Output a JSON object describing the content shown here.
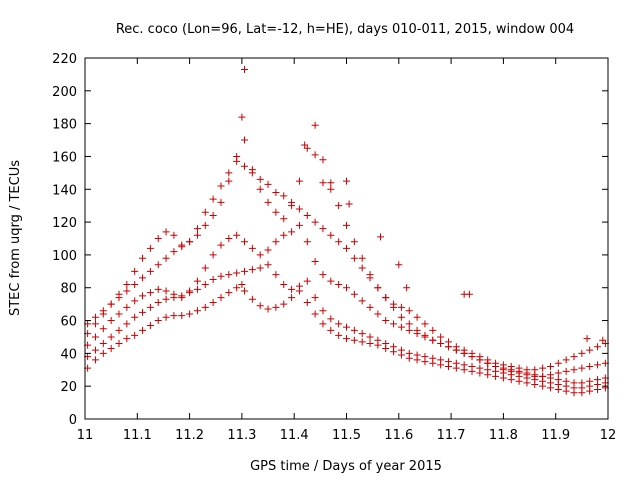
{
  "chart_data": {
    "type": "scatter",
    "title": "Rec. coco (Lon=96, Lat=-12, h=HE), days 010-011, 2015, window 004",
    "xlabel": "GPS time / Days of year 2015",
    "ylabel": "STEC from uqrg / TECUs",
    "xlim": [
      11,
      12
    ],
    "ylim": [
      0,
      220
    ],
    "xticks": [
      "11",
      "11.1",
      "11.2",
      "11.3",
      "11.4",
      "11.5",
      "11.6",
      "11.7",
      "11.8",
      "11.9",
      "12"
    ],
    "yticks": [
      "0",
      "20",
      "40",
      "60",
      "80",
      "100",
      "120",
      "140",
      "160",
      "180",
      "200",
      "220"
    ],
    "grid": false,
    "legend": "none",
    "marker": "plus",
    "color": "#cc0000",
    "series": [
      {
        "x": [
          11.005,
          11.02,
          11.035,
          11.05,
          11.065,
          11.08,
          11.095,
          11.11,
          11.125,
          11.14,
          11.155,
          11.17,
          11.185,
          11.2,
          11.215,
          11.23,
          11.245,
          11.26,
          11.275,
          11.29,
          11.3,
          11.305,
          11.32,
          11.335,
          11.35,
          11.365,
          11.38,
          11.395,
          11.41,
          11.425,
          11.44,
          11.455,
          11.47,
          11.485,
          11.5,
          11.515,
          11.53,
          11.545,
          11.56,
          11.575,
          11.59,
          11.605,
          11.62,
          11.635,
          11.65,
          11.665,
          11.68,
          11.695,
          11.71,
          11.725,
          11.74,
          11.755,
          11.77,
          11.785,
          11.8,
          11.815,
          11.83,
          11.845,
          11.86,
          11.875,
          11.89,
          11.905,
          11.92,
          11.935,
          11.95,
          11.965,
          11.98,
          11.995
        ],
        "y": [
          31,
          36,
          40,
          43,
          46,
          49,
          51,
          54,
          57,
          60,
          62,
          63,
          63,
          64,
          66,
          68,
          71,
          74,
          77,
          80,
          82,
          78,
          73,
          69,
          67,
          68,
          70,
          74,
          78,
          71,
          64,
          58,
          54,
          51,
          49,
          48,
          47,
          46,
          45,
          43,
          41,
          39,
          37,
          36,
          35,
          34,
          33,
          32,
          31,
          30,
          29,
          28,
          27,
          26,
          25,
          24,
          23,
          22,
          21,
          20,
          19,
          18,
          17,
          16,
          16,
          17,
          18,
          19
        ]
      },
      {
        "x": [
          11.005,
          11.02,
          11.035,
          11.05,
          11.065,
          11.08,
          11.095,
          11.11,
          11.125,
          11.14,
          11.155,
          11.17,
          11.185,
          11.2,
          11.215,
          11.23,
          11.245,
          11.26,
          11.275,
          11.29,
          11.305,
          11.32,
          11.335,
          11.35,
          11.365,
          11.38,
          11.395,
          11.41,
          11.425,
          11.44,
          11.455,
          11.47,
          11.485,
          11.5,
          11.515,
          11.53,
          11.545,
          11.56,
          11.575,
          11.59,
          11.605,
          11.62,
          11.635,
          11.65,
          11.665,
          11.68,
          11.695,
          11.71,
          11.725,
          11.74,
          11.755,
          11.77,
          11.785,
          11.8,
          11.815,
          11.83,
          11.845,
          11.86,
          11.875,
          11.89,
          11.905,
          11.92,
          11.935,
          11.95,
          11.965,
          11.98,
          11.995
        ],
        "y": [
          38,
          42,
          46,
          50,
          54,
          58,
          62,
          65,
          68,
          71,
          73,
          74,
          75,
          77,
          79,
          82,
          85,
          87,
          88,
          89,
          90,
          91,
          92,
          94,
          88,
          82,
          79,
          81,
          84,
          74,
          66,
          61,
          58,
          56,
          54,
          52,
          50,
          48,
          46,
          44,
          42,
          40,
          39,
          38,
          37,
          36,
          35,
          34,
          33,
          32,
          31,
          30,
          29,
          28,
          27,
          26,
          25,
          24,
          23,
          22,
          21,
          20,
          19,
          19,
          20,
          21,
          22
        ]
      },
      {
        "x": [
          11.005,
          11.02,
          11.035,
          11.05,
          11.065,
          11.08,
          11.095,
          11.11,
          11.125,
          11.14,
          11.155,
          11.17,
          11.185,
          11.2,
          11.215,
          11.23,
          11.245,
          11.26,
          11.275,
          11.29,
          11.305,
          11.32,
          11.335,
          11.35,
          11.365,
          11.38,
          11.395,
          11.41,
          11.425,
          11.44,
          11.455,
          11.47,
          11.485,
          11.5,
          11.515,
          11.53,
          11.545,
          11.56,
          11.575,
          11.59,
          11.605,
          11.62,
          11.635,
          11.65,
          11.665,
          11.68,
          11.695,
          11.71,
          11.725,
          11.74,
          11.755,
          11.77,
          11.785,
          11.8,
          11.815,
          11.83,
          11.845,
          11.86,
          11.875,
          11.89,
          11.905,
          11.92,
          11.935,
          11.95,
          11.965,
          11.98,
          11.995
        ],
        "y": [
          45,
          50,
          55,
          60,
          64,
          68,
          72,
          75,
          77,
          79,
          78,
          76,
          74,
          78,
          84,
          92,
          100,
          106,
          110,
          112,
          108,
          104,
          100,
          103,
          108,
          112,
          114,
          118,
          108,
          96,
          88,
          84,
          82,
          80,
          76,
          72,
          68,
          64,
          60,
          58,
          56,
          54,
          52,
          50,
          48,
          46,
          44,
          42,
          40,
          38,
          36,
          34,
          32,
          31,
          30,
          29,
          28,
          27,
          26,
          25,
          24,
          23,
          22,
          22,
          23,
          24,
          25
        ]
      },
      {
        "x": [
          11.005,
          11.02,
          11.035,
          11.05,
          11.065,
          11.08,
          11.095,
          11.11,
          11.125,
          11.14,
          11.155,
          11.17,
          11.185,
          11.2,
          11.215,
          11.23,
          11.245,
          11.26,
          11.275,
          11.29,
          11.305,
          11.32,
          11.335,
          11.35,
          11.365,
          11.38,
          11.395,
          11.41,
          11.425,
          11.44,
          11.455,
          11.47,
          11.485,
          11.5,
          11.515,
          11.53,
          11.545,
          11.56,
          11.575,
          11.59,
          11.605,
          11.62,
          11.635,
          11.65,
          11.665,
          11.68,
          11.695,
          11.71,
          11.725,
          11.74,
          11.755,
          11.77,
          11.785,
          11.8,
          11.815,
          11.83,
          11.845,
          11.86,
          11.875,
          11.89,
          11.905,
          11.92,
          11.935,
          11.95,
          11.965,
          11.98,
          11.995
        ],
        "y": [
          52,
          58,
          64,
          70,
          76,
          82,
          90,
          98,
          104,
          110,
          114,
          112,
          106,
          108,
          116,
          126,
          134,
          142,
          150,
          157,
          154,
          150,
          146,
          143,
          138,
          136,
          132,
          128,
          124,
          120,
          116,
          112,
          108,
          104,
          98,
          92,
          86,
          80,
          74,
          68,
          62,
          58,
          54,
          51,
          48,
          46,
          44,
          42,
          40,
          38,
          36,
          34,
          32,
          30,
          29,
          28,
          27,
          26,
          26,
          27,
          28,
          29,
          30,
          31,
          32,
          33,
          34
        ]
      },
      {
        "x": [
          11.005,
          11.02,
          11.035,
          11.05,
          11.065,
          11.08,
          11.095,
          11.11,
          11.125,
          11.14,
          11.155,
          11.17,
          11.185,
          11.2,
          11.215,
          11.23,
          11.245,
          11.26,
          11.275,
          11.29,
          11.3,
          11.305,
          11.32,
          11.335,
          11.35,
          11.365,
          11.38,
          11.395,
          11.41,
          11.425,
          11.44,
          11.455,
          11.47,
          11.485,
          11.5,
          11.515,
          11.53,
          11.545,
          11.56,
          11.575,
          11.59,
          11.605,
          11.62,
          11.635,
          11.65,
          11.665,
          11.68,
          11.695,
          11.71,
          11.725,
          11.74,
          11.755,
          11.77,
          11.785,
          11.8,
          11.815,
          11.83,
          11.845,
          11.86,
          11.875,
          11.89,
          11.905,
          11.92,
          11.935,
          11.95,
          11.965,
          11.98,
          11.995
        ],
        "y": [
          58,
          62,
          66,
          70,
          74,
          78,
          82,
          86,
          90,
          94,
          98,
          102,
          105,
          108,
          112,
          118,
          124,
          132,
          145,
          160,
          184,
          170,
          152,
          140,
          132,
          126,
          122,
          130,
          145,
          165,
          179,
          158,
          140,
          130,
          118,
          108,
          98,
          88,
          80,
          74,
          70,
          68,
          66,
          62,
          58,
          54,
          50,
          47,
          44,
          42,
          40,
          38,
          36,
          34,
          33,
          32,
          31,
          30,
          30,
          31,
          32,
          34,
          36,
          38,
          40,
          42,
          44,
          46
        ]
      },
      {
        "x": [
          11.305,
          11.42,
          11.44,
          11.455,
          11.47,
          11.5,
          11.505,
          11.565,
          11.6,
          11.615,
          11.725,
          11.735,
          11.96,
          11.99
        ],
        "y": [
          213,
          167,
          161,
          144,
          144,
          145,
          131,
          111,
          94,
          80,
          76,
          76,
          49,
          48
        ]
      }
    ]
  }
}
